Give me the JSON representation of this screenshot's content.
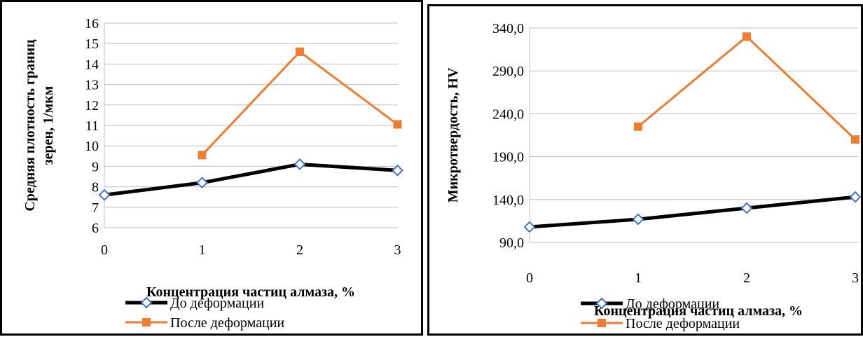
{
  "chart_data": [
    {
      "type": "line",
      "categories": [
        "0",
        "1",
        "2",
        "3"
      ],
      "ylabel_lines": [
        "Средняя плотность границ",
        "зерен, 1/мкм"
      ],
      "xlabel": "Концентрация частиц алмаза, %",
      "ylim": [
        6,
        16
      ],
      "yticks": [
        "6",
        "7",
        "8",
        "9",
        "10",
        "11",
        "12",
        "13",
        "14",
        "15",
        "16"
      ],
      "grid": true,
      "legend_position": "bottom-left",
      "series": [
        {
          "name": "До деформации",
          "values": [
            7.6,
            8.2,
            9.1,
            8.8
          ],
          "color": "#000000",
          "marker": "diamond"
        },
        {
          "name": "После деформации",
          "values": [
            null,
            9.55,
            14.6,
            11.05
          ],
          "color": "#ed7d31",
          "marker": "square"
        }
      ]
    },
    {
      "type": "line",
      "categories": [
        "0",
        "1",
        "2",
        "3"
      ],
      "ylabel_lines": [
        "Микротвердость, HV"
      ],
      "xlabel": "Концентрация частиц алмаза, %",
      "ylim": [
        90,
        340
      ],
      "yticks": [
        "90,0",
        "140,0",
        "190,0",
        "240,0",
        "290,0",
        "340,0"
      ],
      "grid": true,
      "legend_position": "bottom-right",
      "series": [
        {
          "name": "До деформации",
          "values": [
            108,
            117,
            130,
            143
          ],
          "color": "#000000",
          "marker": "diamond"
        },
        {
          "name": "После деформации",
          "values": [
            null,
            225,
            330,
            210
          ],
          "color": "#ed7d31",
          "marker": "square"
        }
      ]
    }
  ]
}
